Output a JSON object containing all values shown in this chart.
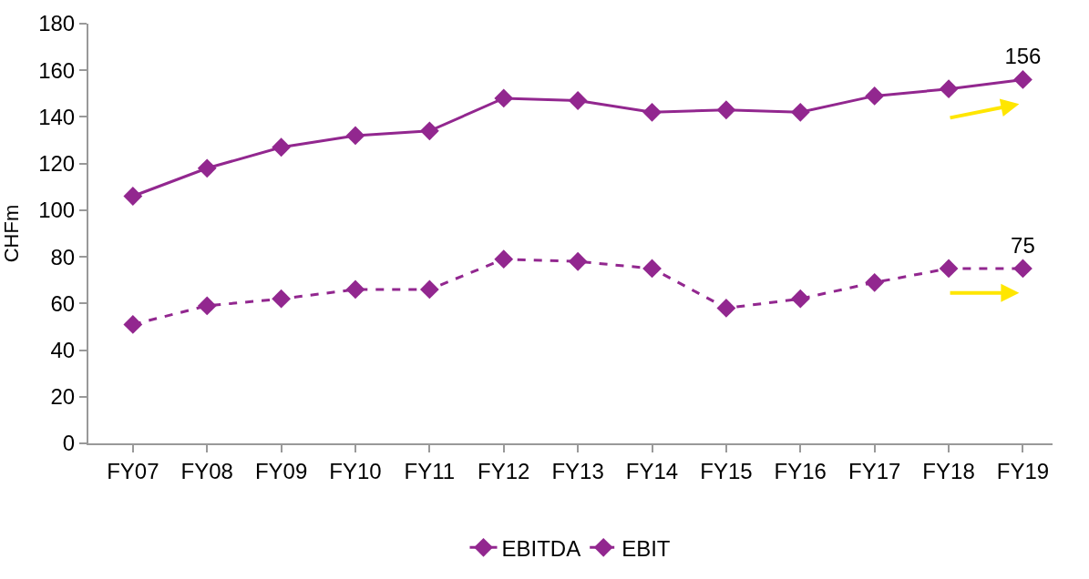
{
  "chart_data": {
    "type": "line",
    "ylabel": "CHFm",
    "categories": [
      "FY07",
      "FY08",
      "FY09",
      "FY10",
      "FY11",
      "FY12",
      "FY13",
      "FY14",
      "FY15",
      "FY16",
      "FY17",
      "FY18",
      "FY19"
    ],
    "series": [
      {
        "name": "EBITDA",
        "color": "#92278f",
        "line_style": "solid",
        "values": [
          106,
          118,
          127,
          132,
          134,
          148,
          147,
          142,
          143,
          142,
          149,
          152,
          156
        ],
        "value_labels": [
          null,
          null,
          null,
          null,
          null,
          null,
          null,
          null,
          null,
          null,
          null,
          null,
          "156"
        ]
      },
      {
        "name": "EBIT",
        "color": "#92278f",
        "line_style": "dashed",
        "values": [
          51,
          59,
          62,
          66,
          66,
          79,
          78,
          75,
          58,
          62,
          69,
          75,
          75
        ],
        "value_labels": [
          null,
          null,
          null,
          null,
          null,
          null,
          null,
          null,
          null,
          null,
          null,
          null,
          "75"
        ]
      }
    ],
    "ylim": [
      0,
      180
    ],
    "yticks": [
      0,
      20,
      40,
      60,
      80,
      100,
      120,
      140,
      160,
      180
    ],
    "legend": "bottom",
    "marker": "diamond"
  }
}
